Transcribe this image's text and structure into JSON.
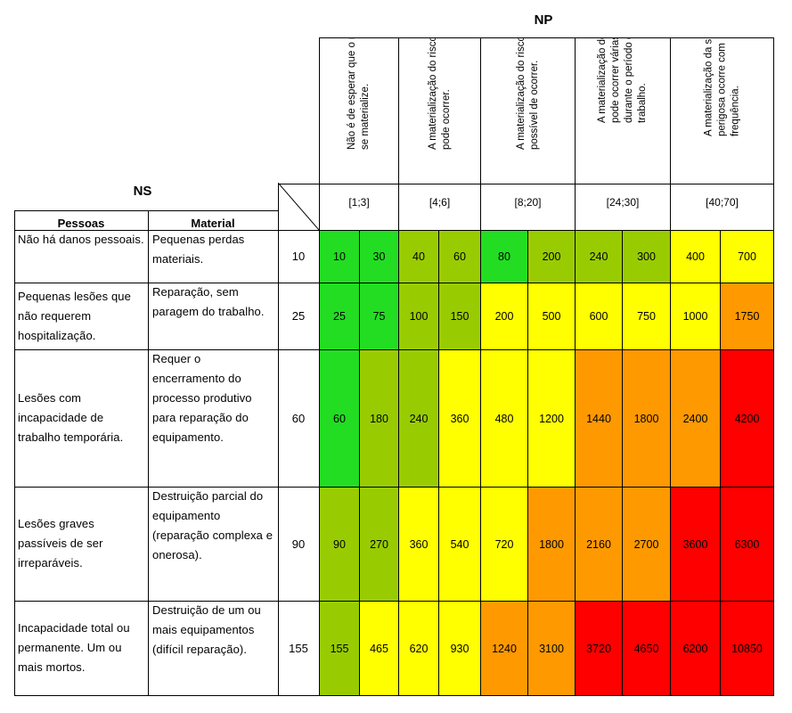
{
  "np_title": "NP",
  "ns_title": "NS",
  "col_headers": {
    "pessoas": "Pessoas",
    "material": "Material"
  },
  "np_levels": [
    {
      "desc": "Não é de esperar que o risco se materialize.",
      "range": "[1;3]"
    },
    {
      "desc": "A materialização do risco pode ocorrer.",
      "range": "[4;6]"
    },
    {
      "desc": "A materialização do risco é possível de ocorrer.",
      "range": "[8;20]"
    },
    {
      "desc": "A materialização do risco pode ocorrer várias vezes durante o período de trabalho.",
      "range": "[24;30]"
    },
    {
      "desc": "A materialização da situação perigosa ocorre com frequência.",
      "range": "[40;70]"
    }
  ],
  "rows": [
    {
      "pessoas": "Não há danos pessoais.",
      "material": "Pequenas perdas materiais.",
      "ns": "10",
      "values": [
        "10",
        "30",
        "40",
        "60",
        "80",
        "200",
        "240",
        "300",
        "400",
        "700"
      ]
    },
    {
      "pessoas": "Pequenas lesões que não requerem hospitalização.",
      "material": "Reparação, sem paragem do trabalho.",
      "ns": "25",
      "values": [
        "25",
        "75",
        "100",
        "150",
        "200",
        "500",
        "600",
        "750",
        "1000",
        "1750"
      ]
    },
    {
      "pessoas": "Lesões com incapacidade de trabalho temporária.",
      "material": "Requer o encerramento do processo produtivo para reparação do equipamento.",
      "ns": "60",
      "values": [
        "60",
        "180",
        "240",
        "360",
        "480",
        "1200",
        "1440",
        "1800",
        "2400",
        "4200"
      ]
    },
    {
      "pessoas": "Lesões graves passíveis de ser irreparáveis.",
      "material": "Destruição parcial do equipamento (reparação complexa e onerosa).",
      "ns": "90",
      "values": [
        "90",
        "270",
        "360",
        "540",
        "720",
        "1800",
        "2160",
        "2700",
        "3600",
        "6300"
      ]
    },
    {
      "pessoas": "Incapacidade total ou permanente. Um ou mais mortos.",
      "material": "Destruição de um ou mais equipamentos (difícil reparação).",
      "ns": "155",
      "values": [
        "155",
        "465",
        "620",
        "930",
        "1240",
        "3100",
        "3720",
        "4650",
        "6200",
        "10850"
      ]
    }
  ],
  "colors": {
    "green": "#22dd22",
    "olive": "#99cc00",
    "yellow": "#ffff00",
    "orange": "#ff9900",
    "red": "#ff0000"
  },
  "cell_colors": [
    [
      "green",
      "green",
      "olive",
      "olive",
      "green",
      "olive",
      "olive",
      "olive",
      "yellow",
      "yellow"
    ],
    [
      "green",
      "green",
      "olive",
      "olive",
      "yellow",
      "yellow",
      "yellow",
      "yellow",
      "yellow",
      "orange"
    ],
    [
      "green",
      "olive",
      "olive",
      "yellow",
      "yellow",
      "yellow",
      "orange",
      "orange",
      "orange",
      "red"
    ],
    [
      "olive",
      "olive",
      "yellow",
      "yellow",
      "yellow",
      "orange",
      "orange",
      "orange",
      "red",
      "red"
    ],
    [
      "olive",
      "yellow",
      "yellow",
      "yellow",
      "orange",
      "orange",
      "red",
      "red",
      "red",
      "red"
    ]
  ]
}
